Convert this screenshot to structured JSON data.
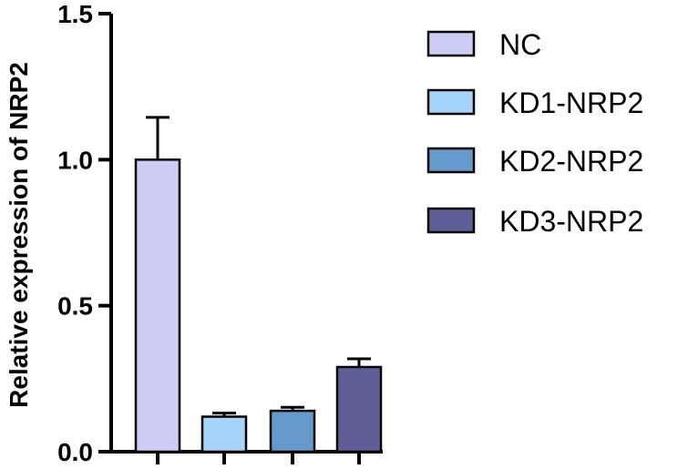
{
  "chart_data": {
    "type": "bar",
    "title": "",
    "xlabel": "",
    "ylabel": "Relative expression of NRP2",
    "ylim": [
      0,
      1.5
    ],
    "yticks": [
      "0.0",
      "0.5",
      "1.0",
      "1.5"
    ],
    "categories": [
      "NC",
      "KD1-NRP2",
      "KD2-NRP2",
      "KD3-NRP2"
    ],
    "values": [
      1.0,
      0.12,
      0.14,
      0.29
    ],
    "errors": [
      0.145,
      0.012,
      0.012,
      0.028
    ],
    "colors": [
      "#ccccf4",
      "#a6d4fb",
      "#6699cc",
      "#5f5f97"
    ],
    "legend": {
      "position": "right",
      "entries": [
        "NC",
        "KD1-NRP2",
        "KD2-NRP2",
        "KD3-NRP2"
      ]
    },
    "grid": false
  }
}
